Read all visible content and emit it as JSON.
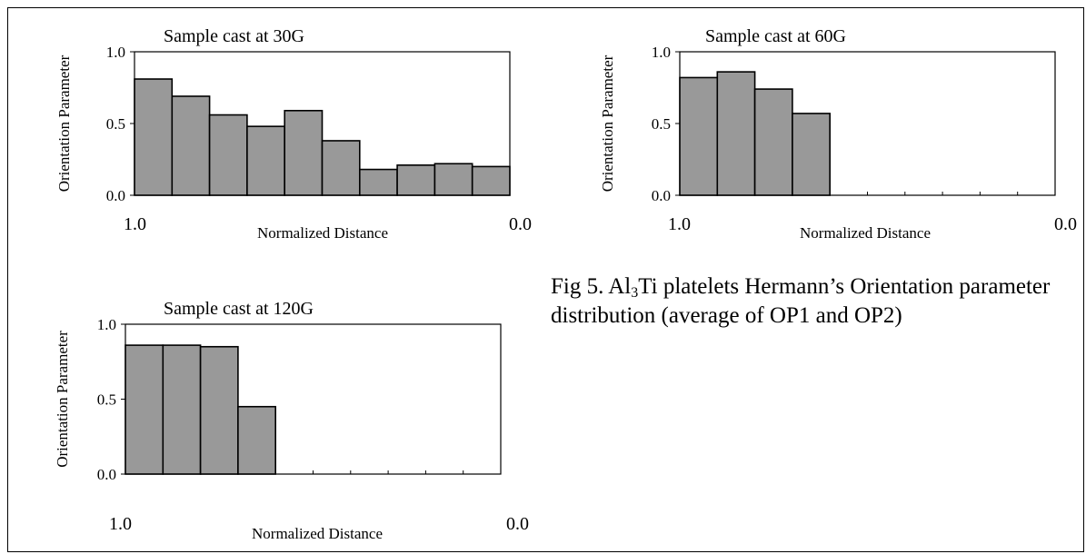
{
  "chart_data": [
    {
      "type": "bar",
      "title": "Sample cast at 30G",
      "xlabel": "Normalized Distance",
      "ylabel": "Orientation Parameter",
      "x_ticks": [
        "1.0",
        "0.0"
      ],
      "y_ticks": [
        "0.0",
        "0.5",
        "1.0"
      ],
      "ylim": [
        0,
        1.0
      ],
      "xlim": [
        1.0,
        0.0
      ],
      "bins": 10,
      "values": [
        0.81,
        0.69,
        0.56,
        0.48,
        0.59,
        0.38,
        0.18,
        0.21,
        0.22,
        0.2
      ],
      "grid": false,
      "bar_color": "#999999"
    },
    {
      "type": "bar",
      "title": "Sample cast at 60G",
      "xlabel": "Normalized Distance",
      "ylabel": "Orientation Parameter",
      "x_ticks": [
        "1.0",
        "0.0"
      ],
      "y_ticks": [
        "0.0",
        "0.5",
        "1.0"
      ],
      "ylim": [
        0,
        1.0
      ],
      "xlim": [
        1.0,
        0.0
      ],
      "bins": 10,
      "values": [
        0.82,
        0.86,
        0.74,
        0.57
      ],
      "grid": false,
      "bar_color": "#999999"
    },
    {
      "type": "bar",
      "title": "Sample cast at 120G",
      "xlabel": "Normalized Distance",
      "ylabel": "Orientation Parameter",
      "x_ticks": [
        "1.0",
        "0.0"
      ],
      "y_ticks": [
        "0.0",
        "0.5",
        "1.0"
      ],
      "ylim": [
        0,
        1.0
      ],
      "xlim": [
        1.0,
        0.0
      ],
      "bins": 10,
      "values": [
        0.86,
        0.86,
        0.85,
        0.45
      ],
      "grid": false,
      "bar_color": "#999999"
    }
  ],
  "caption": {
    "prefix": "Fig 5. Al",
    "subscript": "3",
    "suffix": "Ti platelets Hermann’s Orientation parameter distribution (average of OP1 and OP2)"
  }
}
